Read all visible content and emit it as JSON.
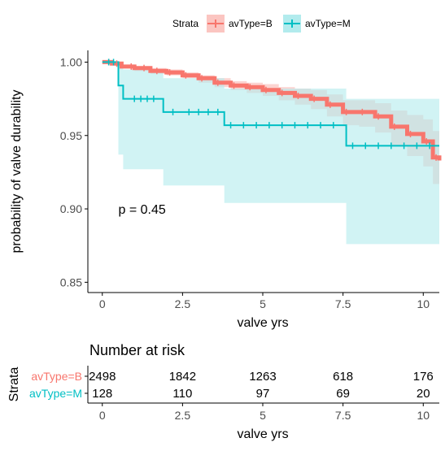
{
  "legend": {
    "title": "Strata",
    "placement": "top",
    "entries": [
      {
        "label": "avType=B",
        "color": "#f8766d",
        "fill": "#fbc5c1"
      },
      {
        "label": "avType=M",
        "color": "#00bfc4",
        "fill": "#b2ebed"
      }
    ]
  },
  "chart_data": [
    {
      "type": "line",
      "subtype": "kaplan-meier step curve with confidence bands",
      "xlabel": "valve yrs",
      "ylabel": "probability of valve durability",
      "xlim": [
        -0.45,
        10.5
      ],
      "ylim": [
        0.843,
        1.008
      ],
      "x_ticks": [
        0,
        2.5,
        5,
        7.5,
        10
      ],
      "x_tick_labels": [
        "0",
        "2.5",
        "5",
        "7.5",
        "10"
      ],
      "y_ticks": [
        0.85,
        0.9,
        0.95,
        1.0
      ],
      "y_tick_labels": [
        "0.85",
        "0.90",
        "0.95",
        "1.00"
      ],
      "grid": false,
      "annotation": {
        "text": "p = 0.45",
        "x": 0.5,
        "y": 0.9
      },
      "series": [
        {
          "name": "avType=B",
          "color": "#f8766d",
          "band_color": "#fbc5c1",
          "x": [
            0,
            0.3,
            0.6,
            1.0,
            1.5,
            2.0,
            2.5,
            3.0,
            3.5,
            4.0,
            4.5,
            5.0,
            5.5,
            6.0,
            6.5,
            7.0,
            7.5,
            8.0,
            8.5,
            9.0,
            9.5,
            10.0,
            10.3,
            10.5
          ],
          "y": [
            1.0,
            0.999,
            0.997,
            0.996,
            0.994,
            0.993,
            0.991,
            0.989,
            0.986,
            0.984,
            0.983,
            0.981,
            0.979,
            0.977,
            0.975,
            0.971,
            0.966,
            0.966,
            0.963,
            0.956,
            0.951,
            0.946,
            0.935,
            0.933
          ],
          "lower": [
            1.0,
            0.998,
            0.996,
            0.994,
            0.992,
            0.991,
            0.989,
            0.986,
            0.983,
            0.981,
            0.979,
            0.977,
            0.974,
            0.971,
            0.968,
            0.963,
            0.957,
            0.956,
            0.952,
            0.943,
            0.936,
            0.929,
            0.917,
            0.914
          ],
          "upper": [
            1.0,
            1.0,
            0.998,
            0.997,
            0.996,
            0.995,
            0.993,
            0.991,
            0.989,
            0.987,
            0.986,
            0.985,
            0.983,
            0.982,
            0.981,
            0.978,
            0.974,
            0.974,
            0.972,
            0.967,
            0.964,
            0.961,
            0.953,
            0.951
          ],
          "censor_x": [
            0.2,
            0.45,
            0.9,
            1.3,
            1.7,
            2.1,
            2.6,
            3.1,
            3.6,
            4.1,
            4.6,
            5.1,
            5.6,
            6.1,
            6.6,
            7.1,
            7.6,
            8.1,
            8.6,
            9.1,
            9.6,
            10.1,
            10.4
          ]
        },
        {
          "name": "avType=M",
          "color": "#00bfc4",
          "band_color": "#b2ebed",
          "x": [
            0,
            0.5,
            0.65,
            1.9,
            3.8,
            7.6,
            10.5
          ],
          "y": [
            1.0,
            0.984,
            0.975,
            0.966,
            0.957,
            0.943,
            0.943
          ],
          "lower": [
            1.0,
            0.937,
            0.927,
            0.916,
            0.904,
            0.876,
            0.876
          ],
          "upper": [
            1.0,
            1.0,
            0.995,
            0.989,
            0.982,
            0.975,
            0.975
          ],
          "censor_x": [
            0.2,
            0.35,
            1.0,
            1.2,
            1.4,
            1.6,
            2.2,
            2.7,
            3.0,
            3.3,
            3.6,
            4.0,
            4.4,
            4.8,
            5.2,
            5.6,
            6.0,
            6.4,
            6.8,
            7.2,
            7.8,
            8.2,
            8.6,
            9.0,
            9.4,
            9.8,
            10.2
          ]
        }
      ]
    },
    {
      "type": "table",
      "title": "Number at risk",
      "xlabel": "valve yrs",
      "ylabel": "Strata",
      "x_ticks": [
        0,
        2.5,
        5,
        7.5,
        10
      ],
      "x_tick_labels": [
        "0",
        "2.5",
        "5",
        "7.5",
        "10"
      ],
      "rows": [
        {
          "label": "avType=B",
          "color": "#f8766d",
          "values": [
            "2498",
            "1842",
            "1263",
            "618",
            "176"
          ]
        },
        {
          "label": "avType=M",
          "color": "#00bfc4",
          "values": [
            "128",
            "110",
            "97",
            "69",
            "20"
          ]
        }
      ]
    }
  ]
}
